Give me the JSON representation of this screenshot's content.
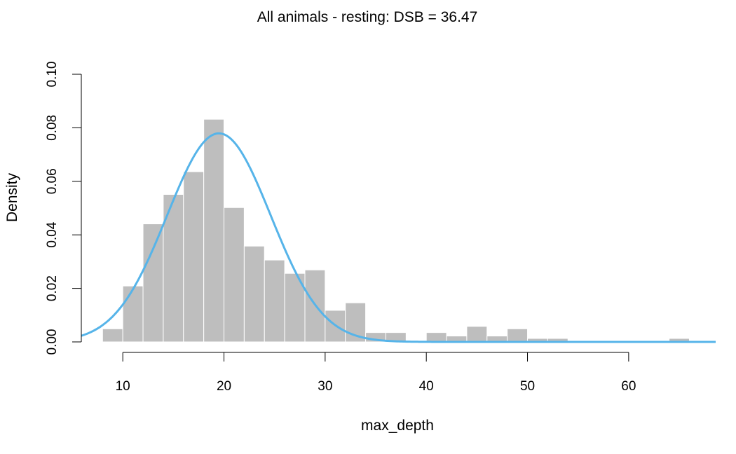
{
  "chart_data": {
    "type": "bar",
    "title": "All animals - resting: DSB = 36.47",
    "xlabel": "max_depth",
    "ylabel": "Density",
    "xlim": [
      5.9,
      68.6
    ],
    "ylim": [
      0,
      0.1
    ],
    "x_ticks": [
      10,
      20,
      30,
      40,
      50,
      60
    ],
    "x_tick_labels": [
      "10",
      "20",
      "30",
      "40",
      "50",
      "60"
    ],
    "y_ticks": [
      0,
      0.02,
      0.04,
      0.06,
      0.08,
      0.1
    ],
    "y_tick_labels": [
      "0.00",
      "0.02",
      "0.04",
      "0.06",
      "0.08",
      "0.10"
    ],
    "grid": false,
    "bin_width": 2,
    "bins": [
      {
        "x0": 8,
        "x1": 10,
        "density": 0.0049
      },
      {
        "x0": 10,
        "x1": 12,
        "density": 0.0209
      },
      {
        "x0": 12,
        "x1": 14,
        "density": 0.0441
      },
      {
        "x0": 14,
        "x1": 16,
        "density": 0.0551
      },
      {
        "x0": 16,
        "x1": 18,
        "density": 0.0636
      },
      {
        "x0": 18,
        "x1": 20,
        "density": 0.0832
      },
      {
        "x0": 20,
        "x1": 22,
        "density": 0.0502
      },
      {
        "x0": 22,
        "x1": 24,
        "density": 0.0358
      },
      {
        "x0": 24,
        "x1": 26,
        "density": 0.0306
      },
      {
        "x0": 26,
        "x1": 28,
        "density": 0.0256
      },
      {
        "x0": 28,
        "x1": 30,
        "density": 0.0269
      },
      {
        "x0": 30,
        "x1": 32,
        "density": 0.0118
      },
      {
        "x0": 32,
        "x1": 34,
        "density": 0.0146
      },
      {
        "x0": 34,
        "x1": 36,
        "density": 0.0035
      },
      {
        "x0": 36,
        "x1": 38,
        "density": 0.0035
      },
      {
        "x0": 40,
        "x1": 42,
        "density": 0.0035
      },
      {
        "x0": 42,
        "x1": 44,
        "density": 0.0022
      },
      {
        "x0": 44,
        "x1": 46,
        "density": 0.0058
      },
      {
        "x0": 46,
        "x1": 48,
        "density": 0.0022
      },
      {
        "x0": 48,
        "x1": 50,
        "density": 0.0049
      },
      {
        "x0": 50,
        "x1": 52,
        "density": 0.0013
      },
      {
        "x0": 52,
        "x1": 54,
        "density": 0.0013
      },
      {
        "x0": 64,
        "x1": 66,
        "density": 0.0013
      }
    ],
    "curve": {
      "type": "normal",
      "mean": 19.5,
      "sd": 5.12,
      "x_range": [
        5.9,
        68.6
      ]
    },
    "colors": {
      "bars": "#bebebe",
      "bar_border": "#ffffff",
      "curve": "#56b4e9",
      "axis": "#000000"
    }
  }
}
